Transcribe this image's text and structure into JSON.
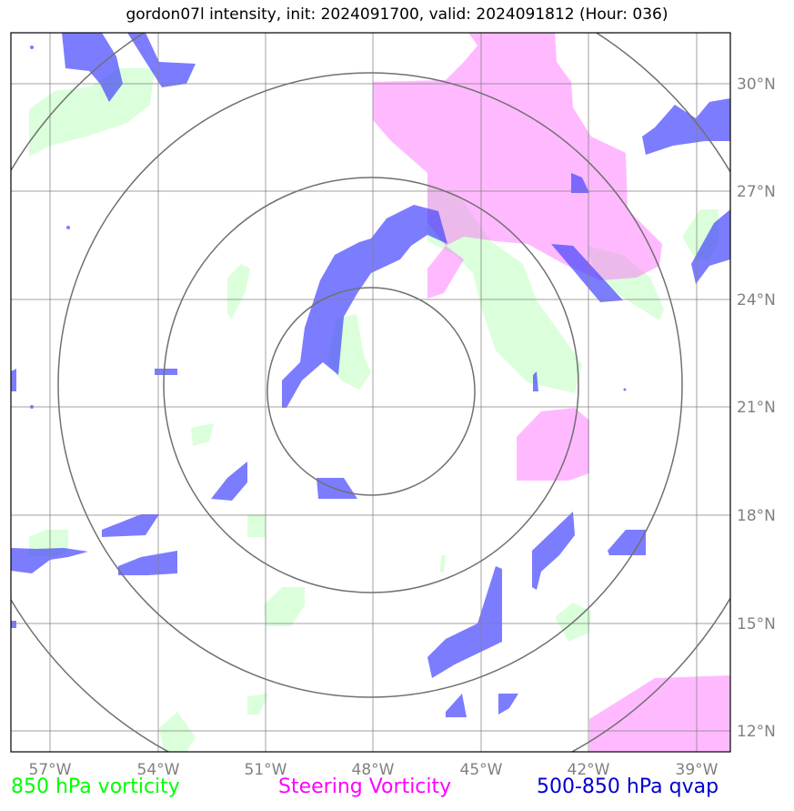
{
  "title": "gordon07l intensity, init: 2024091700, valid: 2024091812 (Hour: 036)",
  "legend": {
    "vorticity_850": "850 hPa vorticity",
    "steering": "Steering Vorticity",
    "qvap": "500-850 hPa qvap"
  },
  "colors": {
    "vorticity_850": "#00ff00",
    "steering": "#ff00ff",
    "qvap": "#0000cd",
    "grid": "#808080"
  },
  "axes": {
    "lon_ticks": [
      "57°W",
      "54°W",
      "51°W",
      "48°W",
      "45°W",
      "42°W",
      "39°W"
    ],
    "lat_ticks": [
      "30°N",
      "27°N",
      "24°N",
      "21°N",
      "18°N",
      "15°N",
      "12°N"
    ]
  }
}
